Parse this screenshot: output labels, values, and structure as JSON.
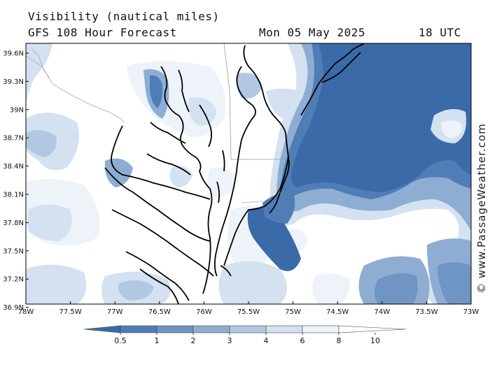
{
  "header": {
    "title": "Visibility (nautical miles)",
    "run": "GFS 108 Hour Forecast",
    "date": "Mon 05 May 2025",
    "time": "18 UTC"
  },
  "map": {
    "region": "Chesapeake Bay / Delmarva",
    "lon_range": [
      -78,
      -73
    ],
    "lat_range": [
      36.7,
      39.7
    ],
    "lat_ticks": [
      "39.6N",
      "39.3N",
      "39N",
      "38.7N",
      "38.4N",
      "38.1N",
      "37.8N",
      "37.5N",
      "37.2N",
      "36.9N"
    ],
    "lon_ticks": [
      "78W",
      "77.5W",
      "77W",
      "76.5W",
      "76W",
      "75.5W",
      "75W",
      "74.5W",
      "74W",
      "73.5W",
      "73W"
    ]
  },
  "legend": {
    "labels": [
      "0.5",
      "1",
      "2",
      "3",
      "4",
      "6",
      "8",
      "10"
    ],
    "colors": [
      "#3a6aa8",
      "#4f7db6",
      "#6e95c4",
      "#8eadd2",
      "#b2c8e2",
      "#d4e1f0",
      "#eef3fa",
      "#ffffff"
    ]
  },
  "watermark": "© www.PassageWeather.com"
}
